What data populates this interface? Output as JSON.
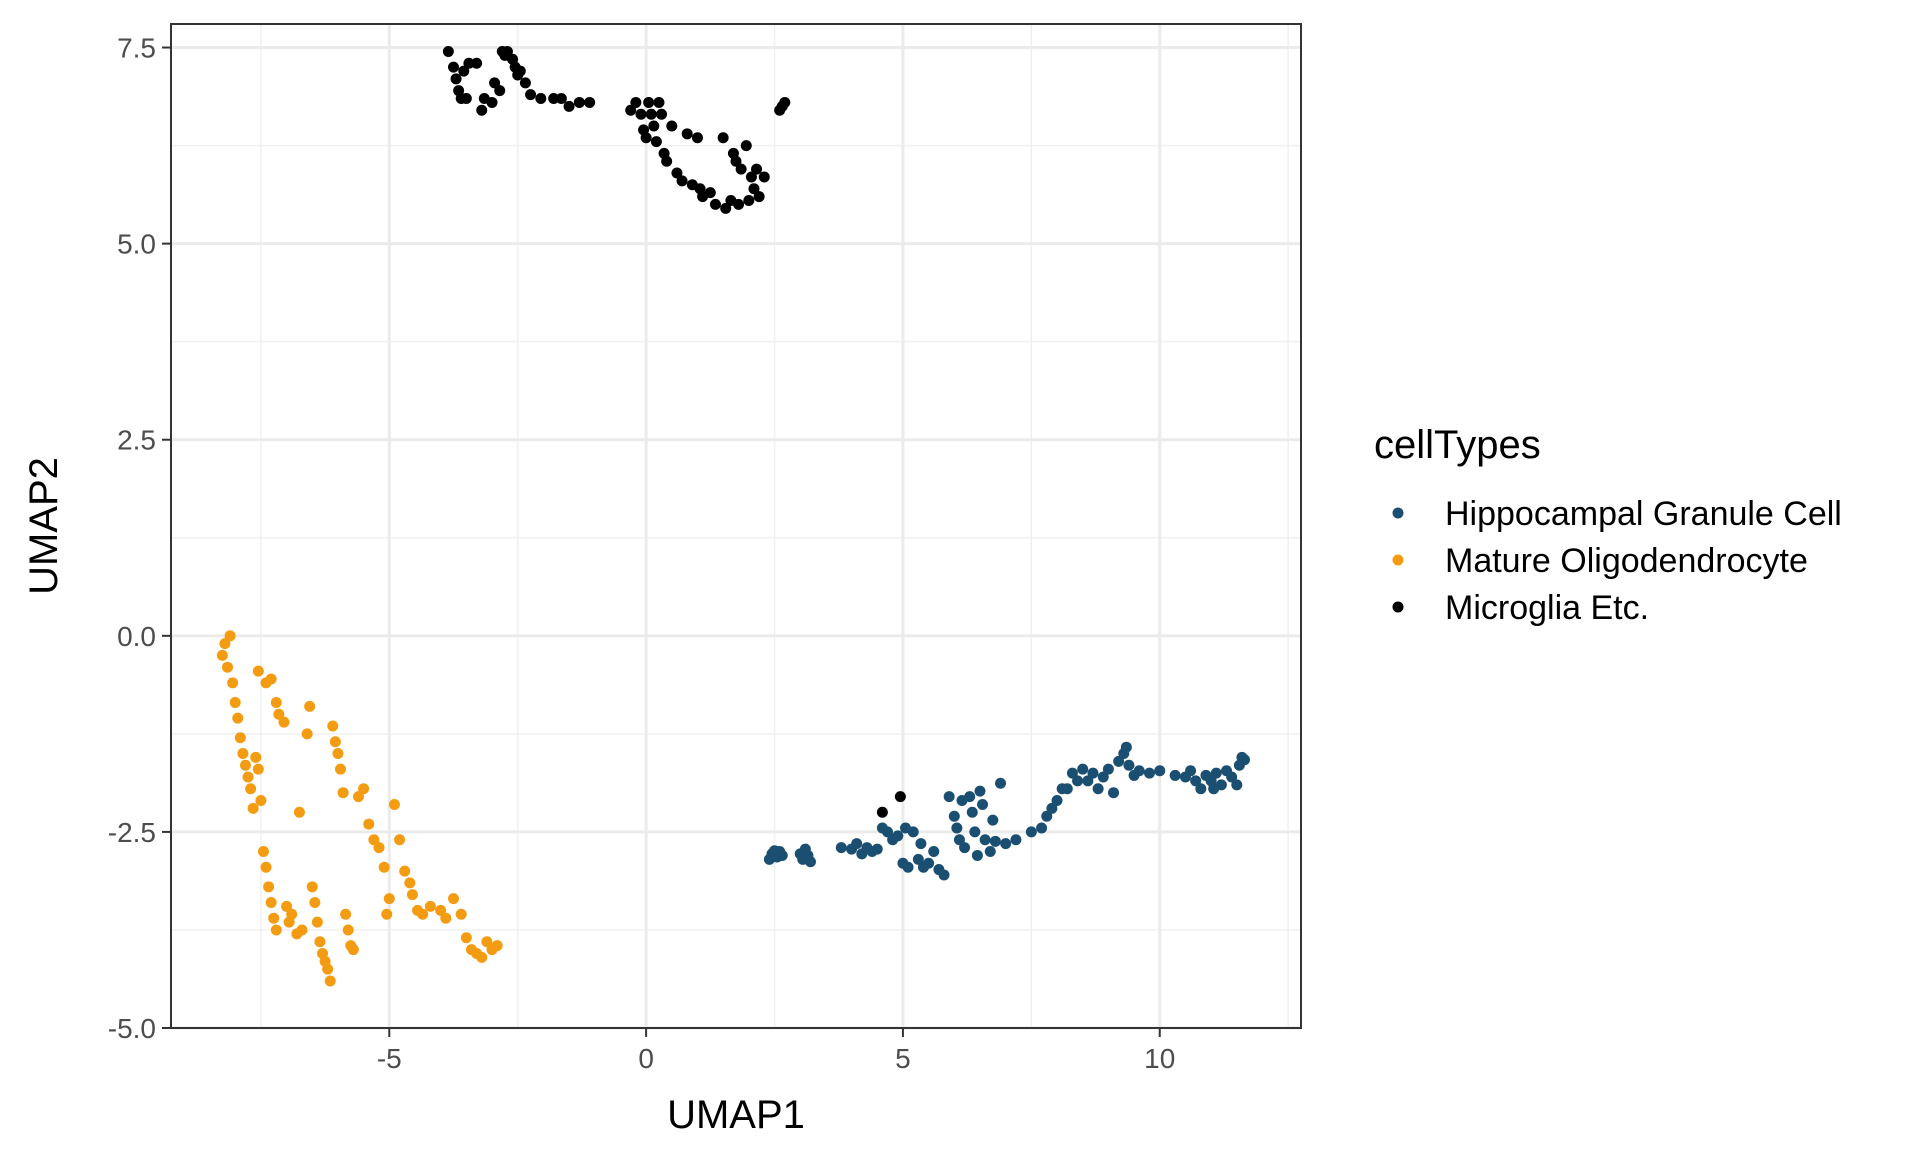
{
  "chart_data": {
    "type": "scatter",
    "title": "",
    "xlabel": "UMAP1",
    "ylabel": "UMAP2",
    "xlim": [
      -9.25,
      12.75
    ],
    "ylim": [
      -5.0,
      7.8
    ],
    "x_ticks": [
      -5,
      0,
      5,
      10
    ],
    "x_tick_labels": [
      "-5",
      "0",
      "5",
      "10"
    ],
    "y_ticks": [
      -5.0,
      -2.5,
      0.0,
      2.5,
      5.0,
      7.5
    ],
    "y_tick_labels": [
      "-5.0",
      "-2.5",
      "0.0",
      "2.5",
      "5.0",
      "7.5"
    ],
    "grid": true,
    "legend": {
      "title": "cellTypes",
      "placement": "right"
    },
    "series": [
      {
        "name": "Hippocampal Granule Cell",
        "color": "#1b4f72",
        "points": [
          [
            2.4,
            -2.85
          ],
          [
            2.45,
            -2.78
          ],
          [
            2.5,
            -2.74
          ],
          [
            2.55,
            -2.82
          ],
          [
            2.6,
            -2.75
          ],
          [
            2.65,
            -2.8
          ],
          [
            3.0,
            -2.78
          ],
          [
            3.05,
            -2.85
          ],
          [
            3.1,
            -2.72
          ],
          [
            3.15,
            -2.8
          ],
          [
            3.2,
            -2.88
          ],
          [
            3.8,
            -2.7
          ],
          [
            4.0,
            -2.72
          ],
          [
            4.1,
            -2.65
          ],
          [
            4.2,
            -2.78
          ],
          [
            4.3,
            -2.7
          ],
          [
            4.4,
            -2.75
          ],
          [
            4.5,
            -2.72
          ],
          [
            4.6,
            -2.45
          ],
          [
            4.7,
            -2.5
          ],
          [
            4.8,
            -2.6
          ],
          [
            4.9,
            -2.55
          ],
          [
            5.0,
            -2.9
          ],
          [
            5.05,
            -2.45
          ],
          [
            5.1,
            -2.95
          ],
          [
            5.2,
            -2.5
          ],
          [
            5.3,
            -2.85
          ],
          [
            5.35,
            -2.65
          ],
          [
            5.4,
            -2.95
          ],
          [
            5.5,
            -2.9
          ],
          [
            5.6,
            -2.75
          ],
          [
            5.7,
            -2.98
          ],
          [
            5.8,
            -3.05
          ],
          [
            5.9,
            -2.05
          ],
          [
            6.0,
            -2.3
          ],
          [
            6.05,
            -2.45
          ],
          [
            6.1,
            -2.6
          ],
          [
            6.15,
            -2.1
          ],
          [
            6.2,
            -2.7
          ],
          [
            6.3,
            -2.05
          ],
          [
            6.35,
            -2.25
          ],
          [
            6.4,
            -2.5
          ],
          [
            6.45,
            -2.8
          ],
          [
            6.5,
            -1.98
          ],
          [
            6.55,
            -2.15
          ],
          [
            6.6,
            -2.6
          ],
          [
            6.7,
            -2.75
          ],
          [
            6.75,
            -2.35
          ],
          [
            6.8,
            -2.62
          ],
          [
            6.9,
            -1.88
          ],
          [
            7.0,
            -2.65
          ],
          [
            7.2,
            -2.6
          ],
          [
            7.5,
            -2.5
          ],
          [
            7.7,
            -2.45
          ],
          [
            7.8,
            -2.3
          ],
          [
            7.9,
            -2.2
          ],
          [
            8.0,
            -2.1
          ],
          [
            8.1,
            -1.95
          ],
          [
            8.2,
            -1.95
          ],
          [
            8.3,
            -1.75
          ],
          [
            8.4,
            -1.85
          ],
          [
            8.5,
            -1.7
          ],
          [
            8.6,
            -1.85
          ],
          [
            8.7,
            -1.75
          ],
          [
            8.8,
            -1.95
          ],
          [
            8.9,
            -1.8
          ],
          [
            9.0,
            -1.7
          ],
          [
            9.1,
            -2.0
          ],
          [
            9.2,
            -1.6
          ],
          [
            9.3,
            -1.5
          ],
          [
            9.35,
            -1.42
          ],
          [
            9.4,
            -1.65
          ],
          [
            9.5,
            -1.78
          ],
          [
            9.6,
            -1.72
          ],
          [
            9.8,
            -1.75
          ],
          [
            10.0,
            -1.72
          ],
          [
            10.3,
            -1.78
          ],
          [
            10.5,
            -1.8
          ],
          [
            10.6,
            -1.72
          ],
          [
            10.7,
            -1.85
          ],
          [
            10.8,
            -1.95
          ],
          [
            10.9,
            -1.78
          ],
          [
            11.0,
            -1.85
          ],
          [
            11.05,
            -1.95
          ],
          [
            11.1,
            -1.75
          ],
          [
            11.2,
            -1.9
          ],
          [
            11.3,
            -1.72
          ],
          [
            11.4,
            -1.8
          ],
          [
            11.5,
            -1.9
          ],
          [
            11.55,
            -1.65
          ],
          [
            11.6,
            -1.55
          ],
          [
            11.65,
            -1.58
          ]
        ]
      },
      {
        "name": "Mature Oligodendrocyte",
        "color": "#f39c12",
        "points": [
          [
            -8.25,
            -0.25
          ],
          [
            -8.2,
            -0.1
          ],
          [
            -8.15,
            -0.4
          ],
          [
            -8.1,
            0.0
          ],
          [
            -8.05,
            -0.6
          ],
          [
            -8.0,
            -0.85
          ],
          [
            -7.95,
            -1.05
          ],
          [
            -7.9,
            -1.3
          ],
          [
            -7.85,
            -1.5
          ],
          [
            -7.8,
            -1.65
          ],
          [
            -7.75,
            -1.8
          ],
          [
            -7.7,
            -1.95
          ],
          [
            -7.65,
            -2.2
          ],
          [
            -7.6,
            -1.55
          ],
          [
            -7.55,
            -1.7
          ],
          [
            -7.5,
            -2.1
          ],
          [
            -7.45,
            -2.75
          ],
          [
            -7.4,
            -2.95
          ],
          [
            -7.35,
            -3.2
          ],
          [
            -7.3,
            -3.4
          ],
          [
            -7.25,
            -3.6
          ],
          [
            -7.2,
            -3.75
          ],
          [
            -7.55,
            -0.45
          ],
          [
            -7.4,
            -0.6
          ],
          [
            -7.3,
            -0.55
          ],
          [
            -7.2,
            -0.85
          ],
          [
            -7.15,
            -1.0
          ],
          [
            -7.05,
            -1.1
          ],
          [
            -7.0,
            -3.45
          ],
          [
            -6.95,
            -3.65
          ],
          [
            -6.9,
            -3.55
          ],
          [
            -6.8,
            -3.8
          ],
          [
            -6.75,
            -2.25
          ],
          [
            -6.7,
            -3.75
          ],
          [
            -6.6,
            -1.25
          ],
          [
            -6.55,
            -0.9
          ],
          [
            -6.5,
            -3.2
          ],
          [
            -6.45,
            -3.4
          ],
          [
            -6.4,
            -3.65
          ],
          [
            -6.35,
            -3.9
          ],
          [
            -6.3,
            -4.05
          ],
          [
            -6.25,
            -4.15
          ],
          [
            -6.2,
            -4.25
          ],
          [
            -6.15,
            -4.4
          ],
          [
            -6.1,
            -1.15
          ],
          [
            -6.05,
            -1.35
          ],
          [
            -6.0,
            -1.5
          ],
          [
            -5.95,
            -1.7
          ],
          [
            -5.9,
            -2.0
          ],
          [
            -5.85,
            -3.55
          ],
          [
            -5.8,
            -3.75
          ],
          [
            -5.75,
            -3.95
          ],
          [
            -5.7,
            -4.0
          ],
          [
            -5.6,
            -2.05
          ],
          [
            -5.5,
            -1.95
          ],
          [
            -5.4,
            -2.4
          ],
          [
            -5.3,
            -2.6
          ],
          [
            -5.2,
            -2.7
          ],
          [
            -5.1,
            -2.95
          ],
          [
            -5.05,
            -3.55
          ],
          [
            -5.0,
            -3.35
          ],
          [
            -4.9,
            -2.15
          ],
          [
            -4.8,
            -2.6
          ],
          [
            -4.7,
            -3.0
          ],
          [
            -4.6,
            -3.15
          ],
          [
            -4.55,
            -3.3
          ],
          [
            -4.45,
            -3.5
          ],
          [
            -4.35,
            -3.55
          ],
          [
            -4.2,
            -3.45
          ],
          [
            -4.0,
            -3.5
          ],
          [
            -3.9,
            -3.6
          ],
          [
            -3.75,
            -3.35
          ],
          [
            -3.6,
            -3.55
          ],
          [
            -3.5,
            -3.85
          ],
          [
            -3.4,
            -4.0
          ],
          [
            -3.3,
            -4.05
          ],
          [
            -3.2,
            -4.1
          ],
          [
            -3.1,
            -3.9
          ],
          [
            -3.0,
            -4.0
          ],
          [
            -2.9,
            -3.95
          ]
        ]
      },
      {
        "name": "Microglia Etc.",
        "color": "#000000",
        "points": [
          [
            -3.85,
            7.45
          ],
          [
            -3.75,
            7.25
          ],
          [
            -3.7,
            7.1
          ],
          [
            -3.65,
            6.95
          ],
          [
            -3.6,
            6.85
          ],
          [
            -3.55,
            7.2
          ],
          [
            -3.5,
            6.85
          ],
          [
            -3.45,
            7.3
          ],
          [
            -3.3,
            7.3
          ],
          [
            -3.2,
            6.7
          ],
          [
            -3.15,
            6.85
          ],
          [
            -3.0,
            6.8
          ],
          [
            -2.95,
            7.05
          ],
          [
            -2.85,
            6.95
          ],
          [
            -2.8,
            7.45
          ],
          [
            -2.75,
            7.4
          ],
          [
            -2.7,
            7.45
          ],
          [
            -2.6,
            7.35
          ],
          [
            -2.55,
            7.25
          ],
          [
            -2.5,
            7.15
          ],
          [
            -2.45,
            7.2
          ],
          [
            -2.35,
            7.05
          ],
          [
            -2.25,
            6.9
          ],
          [
            -2.05,
            6.85
          ],
          [
            -1.8,
            6.85
          ],
          [
            -1.65,
            6.85
          ],
          [
            -1.5,
            6.75
          ],
          [
            -1.3,
            6.8
          ],
          [
            -1.1,
            6.8
          ],
          [
            -0.3,
            6.7
          ],
          [
            -0.2,
            6.8
          ],
          [
            -0.1,
            6.65
          ],
          [
            -0.05,
            6.45
          ],
          [
            0.0,
            6.35
          ],
          [
            0.05,
            6.8
          ],
          [
            0.1,
            6.65
          ],
          [
            0.15,
            6.5
          ],
          [
            0.2,
            6.3
          ],
          [
            0.25,
            6.8
          ],
          [
            0.3,
            6.65
          ],
          [
            0.35,
            6.15
          ],
          [
            0.4,
            6.05
          ],
          [
            0.5,
            6.5
          ],
          [
            0.6,
            5.9
          ],
          [
            0.7,
            5.8
          ],
          [
            0.8,
            6.4
          ],
          [
            0.9,
            5.75
          ],
          [
            1.0,
            6.35
          ],
          [
            1.05,
            5.7
          ],
          [
            1.1,
            5.6
          ],
          [
            1.25,
            5.65
          ],
          [
            1.35,
            5.5
          ],
          [
            1.5,
            6.35
          ],
          [
            1.55,
            5.45
          ],
          [
            1.65,
            5.55
          ],
          [
            1.7,
            6.15
          ],
          [
            1.75,
            6.05
          ],
          [
            1.8,
            5.5
          ],
          [
            1.85,
            5.95
          ],
          [
            1.95,
            6.25
          ],
          [
            2.0,
            5.55
          ],
          [
            2.05,
            5.85
          ],
          [
            2.1,
            5.7
          ],
          [
            2.15,
            5.95
          ],
          [
            2.2,
            5.6
          ],
          [
            2.3,
            5.85
          ],
          [
            2.6,
            6.7
          ],
          [
            2.65,
            6.75
          ],
          [
            2.7,
            6.8
          ],
          [
            4.6,
            -2.25
          ],
          [
            4.95,
            -2.05
          ]
        ]
      }
    ]
  }
}
